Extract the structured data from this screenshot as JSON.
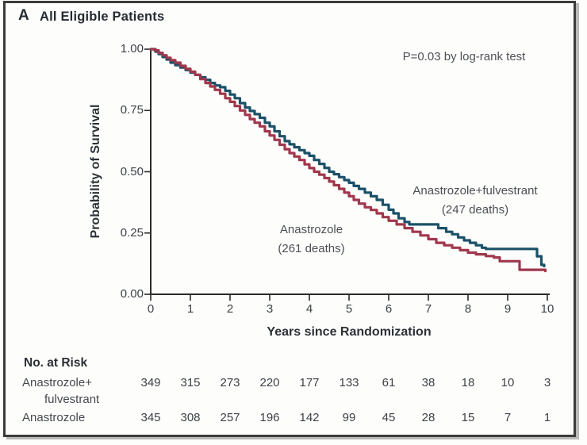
{
  "panel": {
    "label": "A",
    "title": "All Eligible Patients"
  },
  "chart_data": {
    "type": "line",
    "subtype": "kaplan-meier-step",
    "title": "All Eligible Patients",
    "xlabel": "Years since Randomization",
    "ylabel": "Probability of Survival",
    "xlim": [
      0,
      10
    ],
    "ylim": [
      0.0,
      1.0
    ],
    "x_ticks": [
      0,
      1,
      2,
      3,
      4,
      5,
      6,
      7,
      8,
      9,
      10
    ],
    "y_ticks": [
      "1.00",
      "0.75",
      "0.50",
      "0.25",
      "0.00"
    ],
    "y_tick_values": [
      1.0,
      0.75,
      0.5,
      0.25,
      0.0
    ],
    "grid": false,
    "annotation": "P=0.03 by log-rank test",
    "axis_color": "#2b2b2b",
    "series": [
      {
        "name": "Anastrozole+fulvestrant",
        "deaths": 247,
        "label_lines": [
          "Anastrozole+fulvestrant",
          "(247 deaths)"
        ],
        "color": "#1c5168",
        "points": [
          [
            0,
            1.0
          ],
          [
            0.12,
            0.99
          ],
          [
            0.2,
            0.98
          ],
          [
            0.3,
            0.968
          ],
          [
            0.4,
            0.958
          ],
          [
            0.5,
            0.945
          ],
          [
            0.62,
            0.935
          ],
          [
            0.75,
            0.925
          ],
          [
            0.88,
            0.915
          ],
          [
            1.0,
            0.905
          ],
          [
            1.12,
            0.895
          ],
          [
            1.25,
            0.885
          ],
          [
            1.38,
            0.875
          ],
          [
            1.5,
            0.862
          ],
          [
            1.62,
            0.852
          ],
          [
            1.75,
            0.845
          ],
          [
            1.88,
            0.83
          ],
          [
            2.0,
            0.815
          ],
          [
            2.12,
            0.8
          ],
          [
            2.25,
            0.78
          ],
          [
            2.38,
            0.762
          ],
          [
            2.5,
            0.748
          ],
          [
            2.62,
            0.735
          ],
          [
            2.75,
            0.72
          ],
          [
            2.88,
            0.7
          ],
          [
            3.0,
            0.685
          ],
          [
            3.12,
            0.665
          ],
          [
            3.25,
            0.645
          ],
          [
            3.38,
            0.625
          ],
          [
            3.5,
            0.612
          ],
          [
            3.62,
            0.6
          ],
          [
            3.75,
            0.588
          ],
          [
            3.88,
            0.576
          ],
          [
            4.0,
            0.565
          ],
          [
            4.12,
            0.548
          ],
          [
            4.25,
            0.532
          ],
          [
            4.38,
            0.516
          ],
          [
            4.5,
            0.5
          ],
          [
            4.62,
            0.49
          ],
          [
            4.75,
            0.478
          ],
          [
            4.88,
            0.466
          ],
          [
            5.0,
            0.455
          ],
          [
            5.12,
            0.442
          ],
          [
            5.25,
            0.43
          ],
          [
            5.4,
            0.415
          ],
          [
            5.55,
            0.4
          ],
          [
            5.7,
            0.385
          ],
          [
            5.85,
            0.365
          ],
          [
            6.0,
            0.345
          ],
          [
            6.12,
            0.33
          ],
          [
            6.25,
            0.31
          ],
          [
            6.4,
            0.295
          ],
          [
            6.52,
            0.285
          ],
          [
            7.25,
            0.27
          ],
          [
            7.45,
            0.255
          ],
          [
            7.6,
            0.245
          ],
          [
            7.75,
            0.232
          ],
          [
            7.9,
            0.22
          ],
          [
            8.05,
            0.21
          ],
          [
            8.2,
            0.2
          ],
          [
            8.35,
            0.19
          ],
          [
            8.45,
            0.185
          ],
          [
            9.74,
            0.155
          ],
          [
            9.85,
            0.12
          ],
          [
            9.92,
            0.115
          ]
        ]
      },
      {
        "name": "Anastrozole",
        "deaths": 261,
        "label_lines": [
          "Anastrozole",
          "(261 deaths)"
        ],
        "color": "#a0374d",
        "points": [
          [
            0,
            1.0
          ],
          [
            0.1,
            0.995
          ],
          [
            0.2,
            0.985
          ],
          [
            0.3,
            0.975
          ],
          [
            0.4,
            0.965
          ],
          [
            0.5,
            0.955
          ],
          [
            0.62,
            0.945
          ],
          [
            0.75,
            0.932
          ],
          [
            0.88,
            0.92
          ],
          [
            1.0,
            0.908
          ],
          [
            1.12,
            0.895
          ],
          [
            1.25,
            0.878
          ],
          [
            1.38,
            0.862
          ],
          [
            1.5,
            0.848
          ],
          [
            1.62,
            0.834
          ],
          [
            1.75,
            0.818
          ],
          [
            1.88,
            0.8
          ],
          [
            2.0,
            0.785
          ],
          [
            2.12,
            0.768
          ],
          [
            2.25,
            0.75
          ],
          [
            2.38,
            0.732
          ],
          [
            2.5,
            0.715
          ],
          [
            2.62,
            0.7
          ],
          [
            2.75,
            0.685
          ],
          [
            2.88,
            0.665
          ],
          [
            3.0,
            0.648
          ],
          [
            3.12,
            0.63
          ],
          [
            3.25,
            0.61
          ],
          [
            3.38,
            0.592
          ],
          [
            3.5,
            0.576
          ],
          [
            3.62,
            0.562
          ],
          [
            3.75,
            0.548
          ],
          [
            3.88,
            0.53
          ],
          [
            4.0,
            0.515
          ],
          [
            4.12,
            0.5
          ],
          [
            4.25,
            0.488
          ],
          [
            4.38,
            0.474
          ],
          [
            4.5,
            0.46
          ],
          [
            4.62,
            0.445
          ],
          [
            4.75,
            0.43
          ],
          [
            4.88,
            0.415
          ],
          [
            5.0,
            0.4
          ],
          [
            5.12,
            0.385
          ],
          [
            5.25,
            0.37
          ],
          [
            5.4,
            0.355
          ],
          [
            5.55,
            0.344
          ],
          [
            5.7,
            0.33
          ],
          [
            5.85,
            0.315
          ],
          [
            6.0,
            0.3
          ],
          [
            6.2,
            0.285
          ],
          [
            6.4,
            0.27
          ],
          [
            6.6,
            0.255
          ],
          [
            6.8,
            0.24
          ],
          [
            7.0,
            0.225
          ],
          [
            7.2,
            0.21
          ],
          [
            7.4,
            0.2
          ],
          [
            7.6,
            0.19
          ],
          [
            7.8,
            0.18
          ],
          [
            8.0,
            0.17
          ],
          [
            8.2,
            0.163
          ],
          [
            8.45,
            0.156
          ],
          [
            8.65,
            0.15
          ],
          [
            8.8,
            0.135
          ],
          [
            9.3,
            0.1
          ],
          [
            9.95,
            0.095
          ]
        ]
      }
    ]
  },
  "risk_table": {
    "heading": "No. at Risk",
    "rows": [
      {
        "label_lines": [
          "Anastrozole+",
          "fulvestrant"
        ],
        "counts": [
          "349",
          "315",
          "273",
          "220",
          "177",
          "133",
          "61",
          "38",
          "18",
          "10",
          "3"
        ]
      },
      {
        "label_lines": [
          "Anastrozole"
        ],
        "counts": [
          "345",
          "308",
          "257",
          "196",
          "142",
          "99",
          "45",
          "28",
          "15",
          "7",
          "1"
        ]
      }
    ]
  }
}
